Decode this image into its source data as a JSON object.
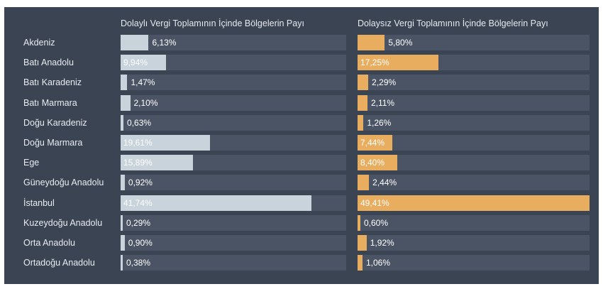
{
  "chart_data": [
    {
      "type": "bar",
      "orientation": "horizontal",
      "title": "Dolaylı Vergi Toplamının İçinde Bölgelerin Payı",
      "color": "#c9d3db",
      "categories": [
        "Akdeniz",
        "Batı Anadolu",
        "Batı Karadeniz",
        "Batı Marmara",
        "Doğu Karadeniz",
        "Doğu Marmara",
        "Ege",
        "Güneydoğu Anadolu",
        "İstanbul",
        "Kuzeydoğu Anadolu",
        "Orta Anadolu",
        "Ortadoğu Anadolu"
      ],
      "values": [
        6.13,
        9.94,
        1.47,
        2.1,
        0.63,
        19.61,
        15.89,
        0.92,
        41.74,
        0.29,
        0.9,
        0.38
      ],
      "labels": [
        "6,13%",
        "9,94%",
        "1,47%",
        "2,10%",
        "0,63%",
        "19,61%",
        "15,89%",
        "0,92%",
        "41,74%",
        "0,29%",
        "0,90%",
        "0,38%"
      ],
      "xlim": [
        0,
        49.41
      ]
    },
    {
      "type": "bar",
      "orientation": "horizontal",
      "title": "Dolaysız Vergi Toplamının İçinde Bölgelerin Payı",
      "color": "#e8ad5f",
      "categories": [
        "Akdeniz",
        "Batı Anadolu",
        "Batı Karadeniz",
        "Batı Marmara",
        "Doğu Karadeniz",
        "Doğu Marmara",
        "Ege",
        "Güneydoğu Anadolu",
        "İstanbul",
        "Kuzeydoğu Anadolu",
        "Orta Anadolu",
        "Ortadoğu Anadolu"
      ],
      "values": [
        5.8,
        17.25,
        2.29,
        2.11,
        1.26,
        7.44,
        8.4,
        2.44,
        49.41,
        0.6,
        1.92,
        1.06
      ],
      "labels": [
        "5,80%",
        "17,25%",
        "2,29%",
        "2,11%",
        "1,26%",
        "7,44%",
        "8,40%",
        "2,44%",
        "49,41%",
        "0,60%",
        "1,92%",
        "1,06%"
      ],
      "xlim": [
        0,
        49.41
      ]
    }
  ]
}
